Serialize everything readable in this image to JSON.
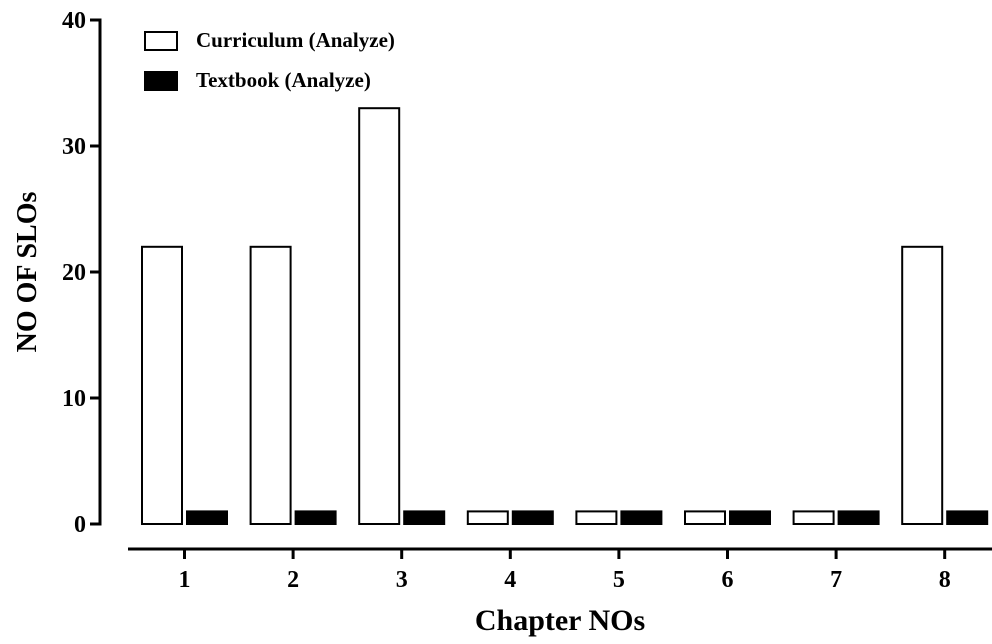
{
  "chart_data": {
    "type": "bar",
    "categories": [
      "1",
      "2",
      "3",
      "4",
      "5",
      "6",
      "7",
      "8"
    ],
    "series": [
      {
        "name": "Curriculum (Analyze)",
        "values": [
          22,
          22,
          33,
          1,
          1,
          1,
          1,
          22
        ],
        "color": "#ffffff",
        "stroke": "#000000"
      },
      {
        "name": "Textbook (Analyze)",
        "values": [
          1,
          1,
          1,
          1,
          1,
          1,
          1,
          1
        ],
        "color": "#000000",
        "stroke": "#000000"
      }
    ],
    "xlabel": "Chapter NOs",
    "ylabel": "NO OF SLOs",
    "ylim": [
      0,
      40
    ],
    "yticks": [
      0,
      10,
      20,
      30,
      40
    ],
    "grid": false,
    "legend_position": "top-left"
  }
}
